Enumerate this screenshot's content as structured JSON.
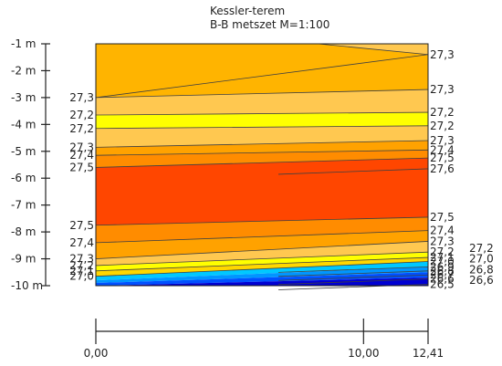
{
  "chart_data": {
    "type": "heatmap",
    "title": "Kessler-terem",
    "subtitle": "B-B metszet M=1:100",
    "y_axis": {
      "range": [
        -10,
        -1
      ],
      "ticks": [
        {
          "value": -1,
          "label": "-1 m"
        },
        {
          "value": -2,
          "label": "-2 m"
        },
        {
          "value": -3,
          "label": "-3 m"
        },
        {
          "value": -4,
          "label": "-4 m"
        },
        {
          "value": -5,
          "label": "-5 m"
        },
        {
          "value": -6,
          "label": "-6 m"
        },
        {
          "value": -7,
          "label": "-7 m"
        },
        {
          "value": -8,
          "label": "-8 m"
        },
        {
          "value": -9,
          "label": "-9 m"
        },
        {
          "value": -10,
          "label": "-10 m"
        }
      ]
    },
    "x_axis": {
      "range": [
        0,
        12.41
      ],
      "ticks": [
        {
          "value": 0,
          "label": "0,00"
        },
        {
          "value": 10,
          "label": "10,00"
        },
        {
          "value": 12.41,
          "label": "12,41"
        }
      ]
    },
    "contours": [
      {
        "value": 27.3,
        "label": "27,3",
        "depth_left": -3.0,
        "depth_right": -1.4,
        "label_left": true
      },
      {
        "value": 27.3,
        "label": "27,3",
        "depth_left": -3.0,
        "depth_right": -2.7,
        "label_left": false
      },
      {
        "value": 27.2,
        "label": "27,2",
        "depth_left": -3.65,
        "depth_right": -3.55,
        "label_left": true
      },
      {
        "value": 27.2,
        "label": "27,2",
        "depth_left": -4.15,
        "depth_right": -4.05,
        "label_left": true
      },
      {
        "value": 27.3,
        "label": "27,3",
        "depth_left": -4.85,
        "depth_right": -4.6,
        "label_left": true
      },
      {
        "value": 27.4,
        "label": "27,4",
        "depth_left": -5.15,
        "depth_right": -4.95,
        "label_left": true
      },
      {
        "value": 27.5,
        "label": "27,5",
        "depth_left": -5.6,
        "depth_right": -5.25,
        "label_left": true
      },
      {
        "value": 27.6,
        "label": "27,6",
        "depth_left": null,
        "depth_right": -5.65,
        "label_left": false
      },
      {
        "value": 27.5,
        "label": "27,5",
        "depth_left": -7.75,
        "depth_right": -7.45,
        "label_left": true
      },
      {
        "value": 27.4,
        "label": "27,4",
        "depth_left": -8.4,
        "depth_right": -7.95,
        "label_left": true
      },
      {
        "value": 27.3,
        "label": "27,3",
        "depth_left": -9.0,
        "depth_right": -8.35,
        "label_left": true
      },
      {
        "value": 27.2,
        "label": "27,2",
        "depth_left": -9.25,
        "depth_right": -8.75,
        "label_left": true
      },
      {
        "value": 27.1,
        "label": "27,1",
        "depth_left": -9.45,
        "depth_right": -8.95,
        "label_left": true
      },
      {
        "value": 27.0,
        "label": "27,0",
        "depth_left": -9.65,
        "depth_right": -9.1,
        "label_left": true
      },
      {
        "value": 26.9,
        "label": "26,9",
        "depth_left": null,
        "depth_right": -9.3,
        "label_left": false
      },
      {
        "value": 26.8,
        "label": "26,8",
        "depth_left": null,
        "depth_right": -9.45,
        "label_left": false
      },
      {
        "value": 26.7,
        "label": "26,7",
        "depth_left": null,
        "depth_right": -9.6,
        "label_left": false
      },
      {
        "value": 26.6,
        "label": "26,6",
        "depth_left": null,
        "depth_right": -9.75,
        "label_left": false
      },
      {
        "value": 26.5,
        "label": "26,5",
        "depth_left": null,
        "depth_right": -9.95,
        "label_left": false
      }
    ],
    "right_extra_labels": [
      {
        "label": "27,2",
        "depth": -8.6
      },
      {
        "label": "27,0",
        "depth": -9.0
      },
      {
        "label": "26,8",
        "depth": -9.4
      },
      {
        "label": "26,6",
        "depth": -9.8
      }
    ],
    "colors": {
      "27.3_top": "#ffb400",
      "27.3_band": "#ffc850",
      "27.2_band": "#ffff00",
      "27.4_band": "#ffa200",
      "27.5_band": "#ff8c00",
      "27.6_core": "#ff4600",
      "27.1_band": "#ffd700",
      "27.0_band": "#e6e000",
      "26.9_band": "#00c8ff",
      "26.8_band": "#0096ff",
      "26.7_band": "#0050ff",
      "26.6_band": "#0000d2",
      "line": "#404040"
    }
  }
}
